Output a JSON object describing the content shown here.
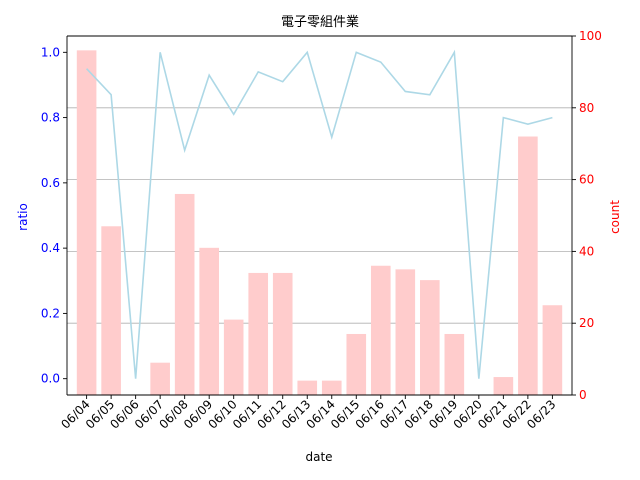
{
  "chart_data": {
    "type": "bar+line",
    "title": "電子零組件業",
    "xlabel": "date",
    "categories": [
      "06/04",
      "06/05",
      "06/06",
      "06/07",
      "06/08",
      "06/09",
      "06/10",
      "06/11",
      "06/12",
      "06/13",
      "06/14",
      "06/15",
      "06/16",
      "06/17",
      "06/18",
      "06/19",
      "06/20",
      "06/21",
      "06/22",
      "06/23"
    ],
    "left_axis": {
      "label": "ratio",
      "ylim": [
        -0.05,
        1.05
      ],
      "ticks": [
        0.0,
        0.2,
        0.4,
        0.6,
        0.8,
        1.0
      ],
      "tick_labels": [
        "0.0",
        "0.2",
        "0.4",
        "0.6",
        "0.8",
        "1.0"
      ],
      "color": "#0000ff"
    },
    "right_axis": {
      "label": "count",
      "ylim": [
        0,
        100
      ],
      "ticks": [
        0,
        20,
        40,
        60,
        80,
        100
      ],
      "tick_labels": [
        "0",
        "20",
        "40",
        "60",
        "80",
        "100"
      ],
      "color": "#ff0000"
    },
    "series": [
      {
        "type": "line",
        "axis": "left",
        "color": "#add8e6",
        "values": [
          0.95,
          0.87,
          0.0,
          1.0,
          0.7,
          0.93,
          0.81,
          0.94,
          0.91,
          1.0,
          0.74,
          1.0,
          0.97,
          0.88,
          0.87,
          1.0,
          0.0,
          0.8,
          0.78,
          0.8
        ]
      },
      {
        "type": "bar",
        "axis": "right",
        "color": "#ffcccc",
        "values": [
          96,
          47,
          0,
          9,
          56,
          41,
          21,
          34,
          34,
          4,
          4,
          17,
          36,
          35,
          32,
          17,
          0,
          5,
          72,
          25
        ]
      }
    ],
    "grid": "horizontal-right-axis"
  }
}
